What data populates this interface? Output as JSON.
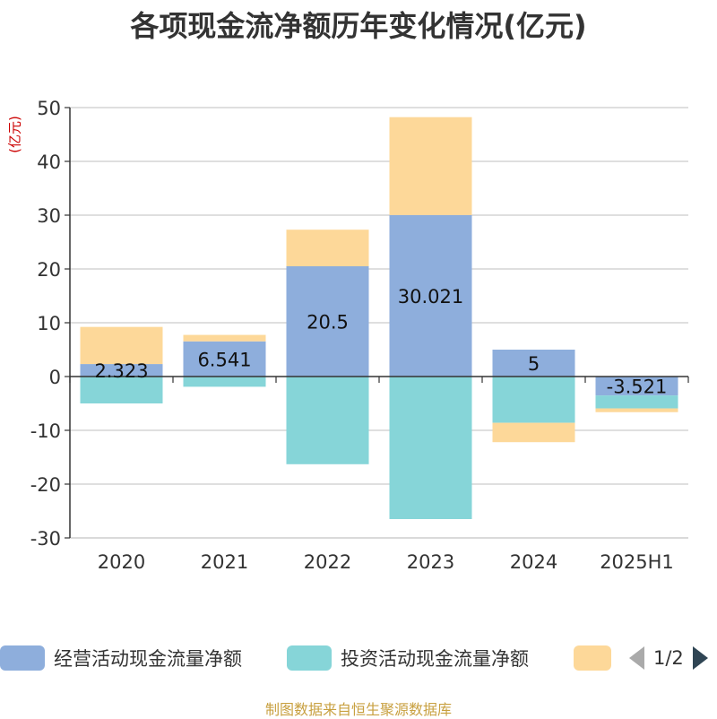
{
  "title": "各项现金流净额历年变化情况(亿元)",
  "unit_label": "(亿元)",
  "source": "制图数据来自恒生聚源数据库",
  "pager": "1/2",
  "colors": {
    "operating": "#8eaedc",
    "investing": "#86d5d8",
    "financing": "#fdd899"
  },
  "chart_data": {
    "type": "bar",
    "stacked": true,
    "categories": [
      "2020",
      "2021",
      "2022",
      "2023",
      "2024",
      "2025H1"
    ],
    "ylim": [
      -30,
      50
    ],
    "yticks": [
      50,
      40,
      30,
      20,
      10,
      0,
      -10,
      -20,
      -30
    ],
    "series": [
      {
        "name": "经营活动现金流量净额",
        "values": [
          2.323,
          6.541,
          20.5,
          30.021,
          5,
          -3.521
        ],
        "labels": [
          "2.323",
          "6.541",
          "20.5",
          "30.021",
          "5",
          "-3.521"
        ]
      },
      {
        "name": "投资活动现金流量净额",
        "values": [
          -5.0,
          -1.9,
          -16.3,
          -26.5,
          -8.6,
          -2.4
        ]
      },
      {
        "name": "",
        "values": [
          6.9,
          1.2,
          6.8,
          18.2,
          -3.6,
          -0.7
        ]
      }
    ],
    "grid": true,
    "legend_position": "bottom"
  }
}
